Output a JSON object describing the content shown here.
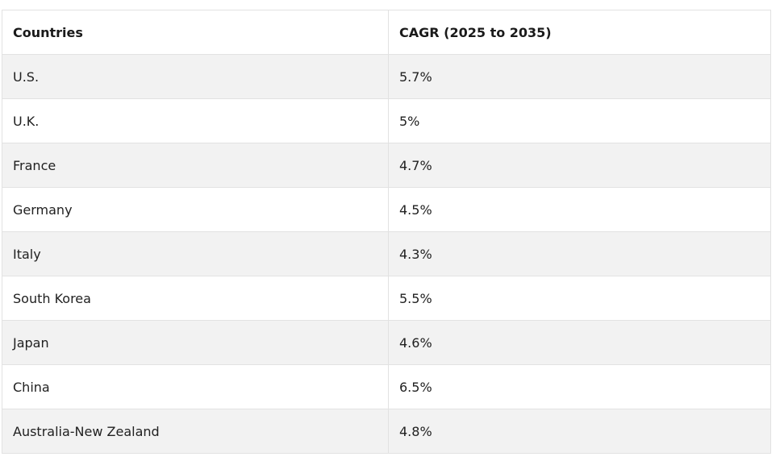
{
  "table": {
    "headers": [
      "Countries",
      "CAGR (2025 to 2035)"
    ],
    "rows": [
      [
        "U.S.",
        "5.7%"
      ],
      [
        "U.K.",
        "5%"
      ],
      [
        "France",
        "4.7%"
      ],
      [
        "Germany",
        "4.5%"
      ],
      [
        "Italy",
        "4.3%"
      ],
      [
        "South Korea",
        "5.5%"
      ],
      [
        "Japan",
        "4.6%"
      ],
      [
        "China",
        "6.5%"
      ],
      [
        "Australia-New Zealand",
        "4.8%"
      ]
    ]
  },
  "colors": {
    "stripe": "#f2f2f2",
    "border": "#e2e2e2",
    "text": "#212121"
  }
}
